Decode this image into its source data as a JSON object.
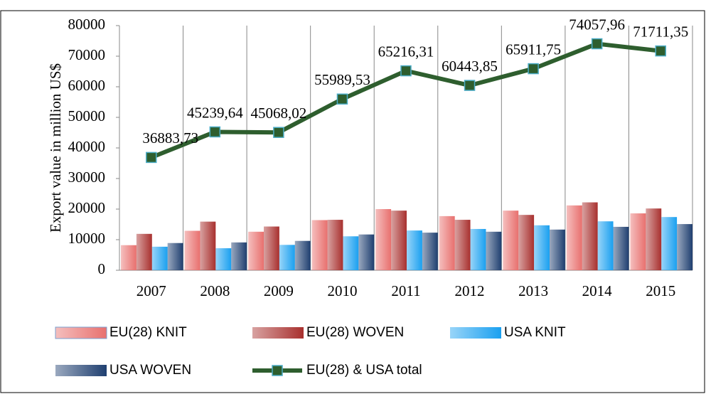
{
  "chart_data": {
    "type": "bar",
    "y_label": "Export value in million US$",
    "categories": [
      "2007",
      "2008",
      "2009",
      "2010",
      "2011",
      "2012",
      "2013",
      "2014",
      "2015"
    ],
    "series": [
      {
        "name": "EU(28) KNIT",
        "color": "#e8706e",
        "values": [
          8200,
          12900,
          12600,
          16400,
          20000,
          17700,
          19500,
          21200,
          18600
        ]
      },
      {
        "name": "EU(28) WOVEN",
        "color": "#a8302e",
        "values": [
          11900,
          15900,
          14300,
          16500,
          19500,
          16500,
          18100,
          22200,
          20200
        ]
      },
      {
        "name": "USA KNIT",
        "color": "#1aa0f0",
        "values": [
          7700,
          7200,
          8300,
          11100,
          13000,
          13500,
          14700,
          16000,
          17400
        ]
      },
      {
        "name": "USA WOVEN",
        "color": "#1f3f70",
        "values": [
          8900,
          9100,
          9600,
          11700,
          12300,
          12600,
          13300,
          14200,
          15100
        ]
      },
      {
        "name": "EU(28) & USA total",
        "type": "line",
        "color": "#2e5e2e",
        "marker_edge": "#4bacc6",
        "values": [
          36883.73,
          45239.64,
          45068.02,
          55989.53,
          65216.31,
          60443.85,
          65911.75,
          74057.96,
          71711.35
        ],
        "value_labels": [
          "36883,73",
          "45239,64",
          "45068,02",
          "55989,53",
          "65216,31",
          "60443,85",
          "65911,75",
          "74057,96",
          "71711,35"
        ]
      }
    ],
    "ylim": [
      0,
      80000
    ],
    "yticks": [
      0,
      10000,
      20000,
      30000,
      40000,
      50000,
      60000,
      70000,
      80000
    ],
    "grid": "x",
    "legend": "bottom"
  }
}
